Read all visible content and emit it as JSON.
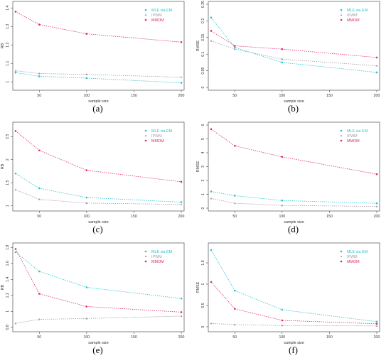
{
  "colors": {
    "mle": "#22c4cc",
    "ipwm": "#a49aa6",
    "mmom": "#e0256c",
    "axis": "#333333"
  },
  "legend_labels": [
    "MLE via EM",
    "IPWM",
    "MMOM"
  ],
  "chart_data": [
    {
      "type": "line",
      "caption": "(a)",
      "xlabel": "sample size",
      "ylabel": "RB",
      "x": [
        25,
        50,
        100,
        200
      ],
      "xlim": [
        25,
        200
      ],
      "xticks": [
        50,
        100,
        150,
        200
      ],
      "ylim": [
        0.97,
        1.42
      ],
      "yticks": [
        1.0,
        1.1,
        1.2,
        1.3,
        1.4
      ],
      "series": [
        {
          "name": "MLE via EM",
          "values": [
            1.05,
            1.03,
            1.02,
            0.995
          ]
        },
        {
          "name": "IPWM",
          "values": [
            1.06,
            1.045,
            1.04,
            1.025
          ]
        },
        {
          "name": "MMOM",
          "values": [
            1.38,
            1.31,
            1.26,
            1.215
          ]
        }
      ]
    },
    {
      "type": "line",
      "caption": "(b)",
      "xlabel": "sample size",
      "ylabel": "RMSE",
      "x": [
        25,
        50,
        100,
        200
      ],
      "xlim": [
        25,
        200
      ],
      "xticks": [
        50,
        100,
        150,
        200
      ],
      "ylim": [
        0,
        0.25
      ],
      "yticks": [
        0.0,
        0.05,
        0.1,
        0.15,
        0.2,
        0.25
      ],
      "series": [
        {
          "name": "MLE via EM",
          "values": [
            0.21,
            0.12,
            0.075,
            0.045
          ]
        },
        {
          "name": "IPWM",
          "values": [
            0.14,
            0.115,
            0.085,
            0.065
          ]
        },
        {
          "name": "MMOM",
          "values": [
            0.17,
            0.125,
            0.115,
            0.09
          ]
        }
      ]
    },
    {
      "type": "line",
      "caption": "(c)",
      "xlabel": "sample size",
      "ylabel": "RB",
      "x": [
        25,
        50,
        100,
        200
      ],
      "xlim": [
        25,
        200
      ],
      "xticks": [
        50,
        100,
        150,
        200
      ],
      "ylim": [
        0.95,
        2.75
      ],
      "yticks": [
        1.0,
        1.5,
        2.0,
        2.5
      ],
      "series": [
        {
          "name": "MLE via EM",
          "values": [
            1.7,
            1.38,
            1.18,
            1.08
          ]
        },
        {
          "name": "IPWM",
          "values": [
            1.35,
            1.14,
            1.06,
            1.03
          ]
        },
        {
          "name": "MMOM",
          "values": [
            2.62,
            2.2,
            1.77,
            1.52
          ]
        }
      ]
    },
    {
      "type": "line",
      "caption": "(d)",
      "xlabel": "sample size",
      "ylabel": "RMSE",
      "x": [
        25,
        50,
        100,
        200
      ],
      "xlim": [
        25,
        200
      ],
      "xticks": [
        50,
        100,
        150,
        200
      ],
      "ylim": [
        0,
        6
      ],
      "yticks": [
        0,
        1,
        2,
        3,
        4,
        5,
        6
      ],
      "series": [
        {
          "name": "MLE via EM",
          "values": [
            1.2,
            0.9,
            0.55,
            0.35
          ]
        },
        {
          "name": "IPWM",
          "values": [
            0.7,
            0.35,
            0.2,
            0.12
          ]
        },
        {
          "name": "MMOM",
          "values": [
            5.7,
            4.5,
            3.7,
            2.45
          ]
        }
      ]
    },
    {
      "type": "line",
      "caption": "(e)",
      "xlabel": "sample size",
      "ylabel": "RB",
      "x": [
        25,
        50,
        100,
        200
      ],
      "xlim": [
        25,
        200
      ],
      "xticks": [
        50,
        100,
        150,
        200
      ],
      "ylim": [
        0.78,
        1.82
      ],
      "yticks": [
        0.8,
        1.0,
        1.2,
        1.4,
        1.6,
        1.8
      ],
      "series": [
        {
          "name": "MLE via EM",
          "values": [
            1.74,
            1.5,
            1.3,
            1.16
          ]
        },
        {
          "name": "IPWM",
          "values": [
            0.85,
            0.9,
            0.91,
            0.94
          ]
        },
        {
          "name": "MMOM",
          "values": [
            1.78,
            1.22,
            1.06,
            0.99
          ]
        }
      ]
    },
    {
      "type": "line",
      "caption": "(f)",
      "xlabel": "sample size",
      "ylabel": "RMSE",
      "x": [
        25,
        50,
        100,
        200
      ],
      "xlim": [
        25,
        200
      ],
      "xticks": [
        50,
        100,
        150,
        200
      ],
      "ylim": [
        -0.05,
        1.9
      ],
      "yticks": [
        0.0,
        0.5,
        1.0,
        1.5
      ],
      "series": [
        {
          "name": "MLE via EM",
          "values": [
            1.8,
            0.85,
            0.4,
            0.12
          ]
        },
        {
          "name": "IPWM",
          "values": [
            0.08,
            0.05,
            0.03,
            0.02
          ]
        },
        {
          "name": "MMOM",
          "values": [
            1.05,
            0.42,
            0.15,
            0.07
          ]
        }
      ]
    }
  ]
}
